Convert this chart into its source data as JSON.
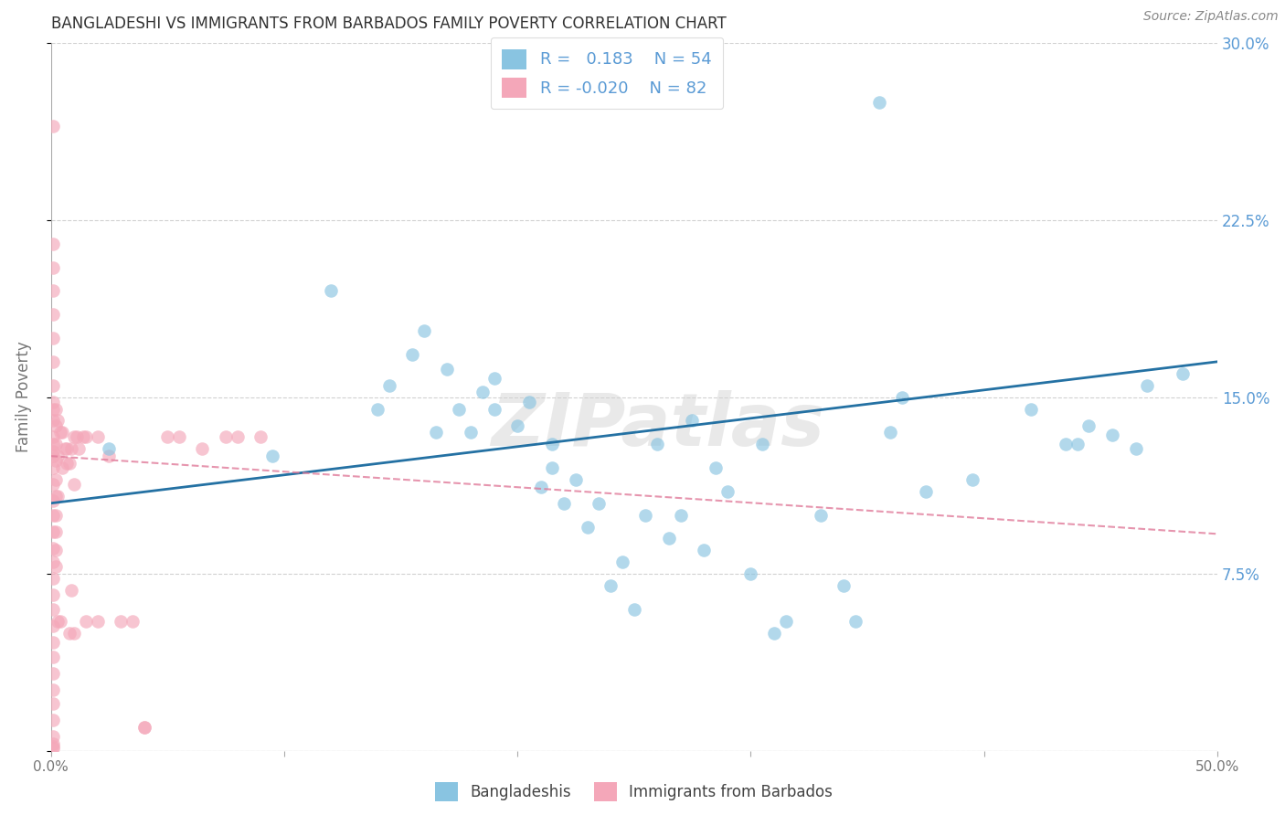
{
  "title": "BANGLADESHI VS IMMIGRANTS FROM BARBADOS FAMILY POVERTY CORRELATION CHART",
  "source": "Source: ZipAtlas.com",
  "ylabel": "Family Poverty",
  "xlim": [
    0.0,
    0.5
  ],
  "ylim": [
    0.0,
    0.3
  ],
  "color_blue": "#89c4e1",
  "color_pink": "#f4a7b9",
  "color_blue_line": "#2471a3",
  "color_pink_line": "#e07b9a",
  "watermark": "ZIPatlas",
  "blue_scatter_x": [
    0.025,
    0.095,
    0.12,
    0.14,
    0.145,
    0.155,
    0.16,
    0.165,
    0.17,
    0.175,
    0.18,
    0.185,
    0.19,
    0.19,
    0.2,
    0.205,
    0.21,
    0.215,
    0.215,
    0.22,
    0.225,
    0.23,
    0.235,
    0.24,
    0.245,
    0.25,
    0.255,
    0.26,
    0.265,
    0.27,
    0.275,
    0.28,
    0.285,
    0.29,
    0.3,
    0.305,
    0.31,
    0.315,
    0.33,
    0.34,
    0.345,
    0.355,
    0.36,
    0.365,
    0.375,
    0.395,
    0.42,
    0.435,
    0.44,
    0.445,
    0.455,
    0.465,
    0.47,
    0.485
  ],
  "blue_scatter_y": [
    0.128,
    0.125,
    0.195,
    0.145,
    0.155,
    0.168,
    0.178,
    0.135,
    0.162,
    0.145,
    0.135,
    0.152,
    0.145,
    0.158,
    0.138,
    0.148,
    0.112,
    0.12,
    0.13,
    0.105,
    0.115,
    0.095,
    0.105,
    0.07,
    0.08,
    0.06,
    0.1,
    0.13,
    0.09,
    0.1,
    0.14,
    0.085,
    0.12,
    0.11,
    0.075,
    0.13,
    0.05,
    0.055,
    0.1,
    0.07,
    0.055,
    0.275,
    0.135,
    0.15,
    0.11,
    0.115,
    0.145,
    0.13,
    0.13,
    0.138,
    0.134,
    0.128,
    0.155,
    0.16
  ],
  "pink_scatter_x": [
    0.001,
    0.001,
    0.001,
    0.001,
    0.001,
    0.001,
    0.001,
    0.001,
    0.001,
    0.001,
    0.001,
    0.001,
    0.001,
    0.001,
    0.001,
    0.001,
    0.001,
    0.001,
    0.001,
    0.001,
    0.001,
    0.001,
    0.001,
    0.001,
    0.001,
    0.001,
    0.001,
    0.001,
    0.001,
    0.001,
    0.001,
    0.001,
    0.001,
    0.001,
    0.001,
    0.001,
    0.002,
    0.002,
    0.002,
    0.002,
    0.002,
    0.002,
    0.002,
    0.002,
    0.002,
    0.002,
    0.003,
    0.003,
    0.003,
    0.003,
    0.004,
    0.004,
    0.005,
    0.005,
    0.006,
    0.007,
    0.007,
    0.008,
    0.008,
    0.009,
    0.009,
    0.01,
    0.01,
    0.01,
    0.011,
    0.012,
    0.014,
    0.015,
    0.02,
    0.015,
    0.02,
    0.025,
    0.03,
    0.035,
    0.04,
    0.04,
    0.05,
    0.055,
    0.065,
    0.075,
    0.08,
    0.09
  ],
  "pink_scatter_y": [
    0.265,
    0.145,
    0.215,
    0.205,
    0.195,
    0.185,
    0.175,
    0.165,
    0.155,
    0.148,
    0.14,
    0.133,
    0.127,
    0.12,
    0.113,
    0.106,
    0.1,
    0.093,
    0.086,
    0.08,
    0.073,
    0.066,
    0.06,
    0.053,
    0.046,
    0.04,
    0.033,
    0.026,
    0.02,
    0.013,
    0.006,
    0.003,
    0.002,
    0.001,
    0.13,
    0.125,
    0.145,
    0.138,
    0.13,
    0.123,
    0.115,
    0.108,
    0.1,
    0.093,
    0.085,
    0.078,
    0.14,
    0.125,
    0.108,
    0.055,
    0.135,
    0.055,
    0.135,
    0.12,
    0.128,
    0.128,
    0.122,
    0.122,
    0.05,
    0.128,
    0.068,
    0.133,
    0.113,
    0.05,
    0.133,
    0.128,
    0.133,
    0.133,
    0.133,
    0.055,
    0.055,
    0.125,
    0.055,
    0.055,
    0.01,
    0.01,
    0.133,
    0.133,
    0.128,
    0.133,
    0.133,
    0.133
  ],
  "blue_line_x": [
    0.0,
    0.5
  ],
  "blue_line_y": [
    0.105,
    0.165
  ],
  "pink_line_x": [
    0.0,
    0.5
  ],
  "pink_line_y": [
    0.125,
    0.092
  ],
  "background_color": "#ffffff",
  "grid_color": "#cccccc",
  "title_color": "#333333",
  "axis_label_color": "#777777",
  "right_tick_color": "#5b9bd5",
  "legend_label1": "Bangladeshis",
  "legend_label2": "Immigrants from Barbados"
}
